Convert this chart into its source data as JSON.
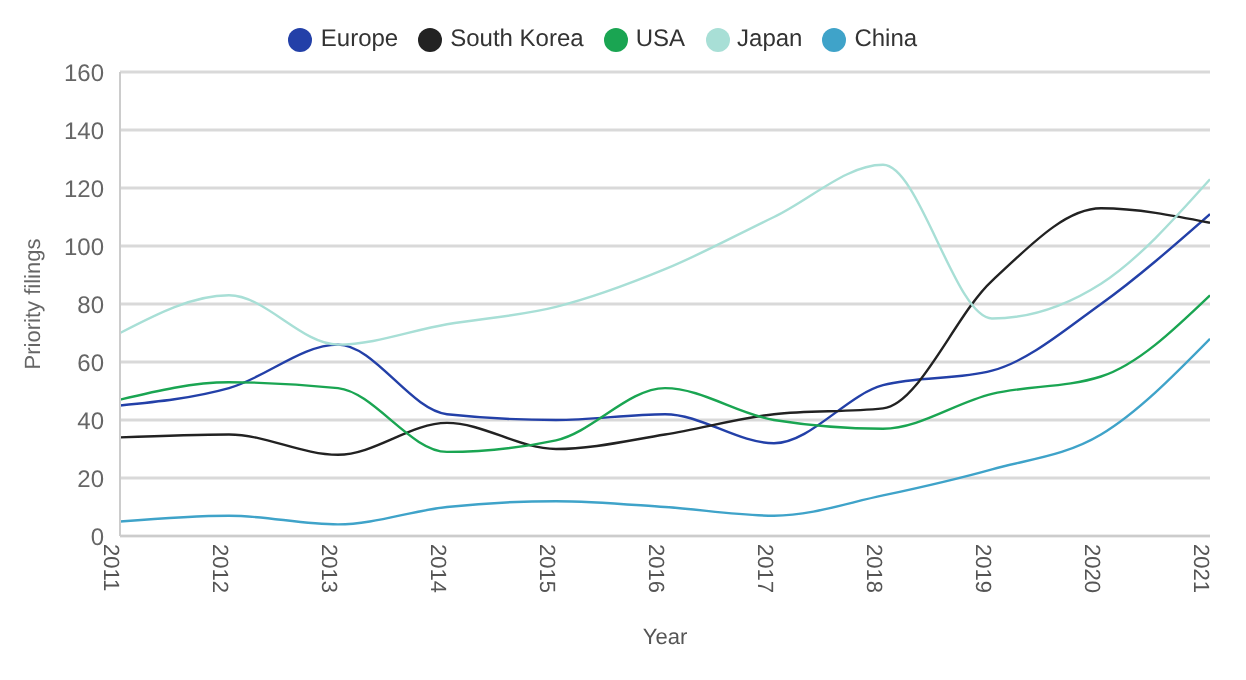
{
  "chart_data": {
    "type": "line",
    "xlabel": "Year",
    "ylabel": "Priority filings",
    "x": [
      2011,
      2012,
      2013,
      2014,
      2015,
      2016,
      2017,
      2018,
      2019,
      2020,
      2021
    ],
    "xlim": [
      2011,
      2021
    ],
    "xticks": [
      2011,
      2012,
      2013,
      2014,
      2015,
      2016,
      2017,
      2018,
      2019,
      2020,
      2021
    ],
    "ylim": [
      0,
      160
    ],
    "yticks": [
      0,
      20,
      40,
      60,
      80,
      100,
      120,
      140,
      160
    ],
    "grid": "y",
    "legend": "top",
    "marker": "none",
    "series": [
      {
        "name": "Europe",
        "color": "#2340a8",
        "values": [
          45,
          51,
          66,
          42,
          40,
          42,
          32,
          52,
          57,
          80,
          111
        ]
      },
      {
        "name": "South Korea",
        "color": "#222222",
        "values": [
          34,
          35,
          28,
          39,
          30,
          35,
          42,
          44,
          88,
          113,
          108
        ]
      },
      {
        "name": "USA",
        "color": "#1aa552",
        "values": [
          47,
          53,
          51,
          29,
          33,
          51,
          40,
          37,
          49,
          55,
          83
        ]
      },
      {
        "name": "Japan",
        "color": "#a8dfd6",
        "values": [
          70,
          83,
          66,
          73,
          79,
          92,
          110,
          128,
          75,
          87,
          123
        ]
      },
      {
        "name": "China",
        "color": "#3fa3c9",
        "values": [
          5,
          7,
          4,
          10,
          12,
          10,
          7,
          14,
          23,
          35,
          68
        ]
      }
    ]
  }
}
